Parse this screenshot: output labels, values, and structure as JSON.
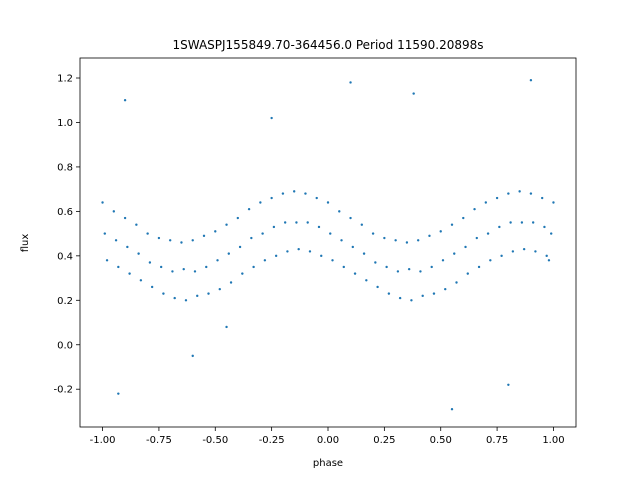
{
  "chart_data": {
    "type": "scatter",
    "title": "1SWASPJ155849.70-364456.0 Period 11590.20898s",
    "xlabel": "phase",
    "ylabel": "flux",
    "xlim": [
      -1.1,
      1.1
    ],
    "ylim": [
      -0.37,
      1.29
    ],
    "xticks": [
      "-1.00",
      "-0.75",
      "-0.50",
      "-0.25",
      "0.00",
      "0.25",
      "0.50",
      "0.75",
      "1.00"
    ],
    "yticks": [
      "-0.2",
      "0.0",
      "0.2",
      "0.4",
      "0.6",
      "0.8",
      "1.0",
      "1.2"
    ],
    "grid": false,
    "marker_color": "#1f77b4",
    "points": [
      [
        -1.0,
        0.64
      ],
      [
        -0.99,
        0.5
      ],
      [
        -0.98,
        0.38
      ],
      [
        -0.95,
        0.6
      ],
      [
        -0.94,
        0.47
      ],
      [
        -0.93,
        0.35
      ],
      [
        -0.9,
        0.57
      ],
      [
        -0.89,
        0.44
      ],
      [
        -0.88,
        0.32
      ],
      [
        -0.85,
        0.54
      ],
      [
        -0.84,
        0.41
      ],
      [
        -0.83,
        0.29
      ],
      [
        -0.8,
        0.5
      ],
      [
        -0.79,
        0.37
      ],
      [
        -0.78,
        0.26
      ],
      [
        -0.75,
        0.48
      ],
      [
        -0.74,
        0.35
      ],
      [
        -0.73,
        0.23
      ],
      [
        -0.7,
        0.47
      ],
      [
        -0.69,
        0.33
      ],
      [
        -0.68,
        0.21
      ],
      [
        -0.65,
        0.46
      ],
      [
        -0.64,
        0.34
      ],
      [
        -0.63,
        0.2
      ],
      [
        -0.6,
        0.47
      ],
      [
        -0.59,
        0.33
      ],
      [
        -0.58,
        0.22
      ],
      [
        -0.55,
        0.49
      ],
      [
        -0.54,
        0.35
      ],
      [
        -0.53,
        0.23
      ],
      [
        -0.5,
        0.51
      ],
      [
        -0.49,
        0.38
      ],
      [
        -0.48,
        0.25
      ],
      [
        -0.45,
        0.54
      ],
      [
        -0.44,
        0.41
      ],
      [
        -0.43,
        0.28
      ],
      [
        -0.4,
        0.57
      ],
      [
        -0.39,
        0.44
      ],
      [
        -0.38,
        0.32
      ],
      [
        -0.35,
        0.61
      ],
      [
        -0.34,
        0.48
      ],
      [
        -0.33,
        0.35
      ],
      [
        -0.3,
        0.64
      ],
      [
        -0.29,
        0.5
      ],
      [
        -0.28,
        0.38
      ],
      [
        -0.25,
        0.66
      ],
      [
        -0.24,
        0.53
      ],
      [
        -0.23,
        0.4
      ],
      [
        -0.2,
        0.68
      ],
      [
        -0.19,
        0.55
      ],
      [
        -0.18,
        0.42
      ],
      [
        -0.15,
        0.69
      ],
      [
        -0.14,
        0.55
      ],
      [
        -0.13,
        0.43
      ],
      [
        -0.1,
        0.68
      ],
      [
        -0.09,
        0.55
      ],
      [
        -0.08,
        0.42
      ],
      [
        -0.05,
        0.66
      ],
      [
        -0.04,
        0.53
      ],
      [
        -0.03,
        0.4
      ],
      [
        0.0,
        0.64
      ],
      [
        0.01,
        0.5
      ],
      [
        0.02,
        0.38
      ],
      [
        0.05,
        0.6
      ],
      [
        0.06,
        0.47
      ],
      [
        0.07,
        0.35
      ],
      [
        0.1,
        0.57
      ],
      [
        0.11,
        0.44
      ],
      [
        0.12,
        0.32
      ],
      [
        0.15,
        0.54
      ],
      [
        0.16,
        0.41
      ],
      [
        0.17,
        0.29
      ],
      [
        0.2,
        0.5
      ],
      [
        0.21,
        0.37
      ],
      [
        0.22,
        0.26
      ],
      [
        0.25,
        0.48
      ],
      [
        0.26,
        0.35
      ],
      [
        0.27,
        0.23
      ],
      [
        0.3,
        0.47
      ],
      [
        0.31,
        0.33
      ],
      [
        0.32,
        0.21
      ],
      [
        0.35,
        0.46
      ],
      [
        0.36,
        0.34
      ],
      [
        0.37,
        0.2
      ],
      [
        0.4,
        0.47
      ],
      [
        0.41,
        0.33
      ],
      [
        0.42,
        0.22
      ],
      [
        0.45,
        0.49
      ],
      [
        0.46,
        0.35
      ],
      [
        0.47,
        0.23
      ],
      [
        0.5,
        0.51
      ],
      [
        0.51,
        0.38
      ],
      [
        0.52,
        0.25
      ],
      [
        0.55,
        0.54
      ],
      [
        0.56,
        0.41
      ],
      [
        0.57,
        0.28
      ],
      [
        0.6,
        0.57
      ],
      [
        0.61,
        0.44
      ],
      [
        0.62,
        0.32
      ],
      [
        0.65,
        0.61
      ],
      [
        0.66,
        0.48
      ],
      [
        0.67,
        0.35
      ],
      [
        0.7,
        0.64
      ],
      [
        0.71,
        0.5
      ],
      [
        0.72,
        0.38
      ],
      [
        0.75,
        0.66
      ],
      [
        0.76,
        0.53
      ],
      [
        0.77,
        0.4
      ],
      [
        0.8,
        0.68
      ],
      [
        0.81,
        0.55
      ],
      [
        0.82,
        0.42
      ],
      [
        0.85,
        0.69
      ],
      [
        0.86,
        0.55
      ],
      [
        0.87,
        0.43
      ],
      [
        0.9,
        0.68
      ],
      [
        0.91,
        0.55
      ],
      [
        0.92,
        0.42
      ],
      [
        0.95,
        0.66
      ],
      [
        0.96,
        0.53
      ],
      [
        0.97,
        0.4
      ],
      [
        1.0,
        0.64
      ],
      [
        0.99,
        0.5
      ],
      [
        0.98,
        0.38
      ],
      [
        -0.9,
        1.1
      ],
      [
        -0.6,
        -0.05
      ],
      [
        0.1,
        1.18
      ],
      [
        0.55,
        -0.29
      ],
      [
        0.8,
        -0.18
      ],
      [
        -0.25,
        1.02
      ],
      [
        0.38,
        1.13
      ],
      [
        -0.93,
        -0.22
      ],
      [
        0.9,
        1.19
      ],
      [
        -0.45,
        0.08
      ]
    ]
  }
}
